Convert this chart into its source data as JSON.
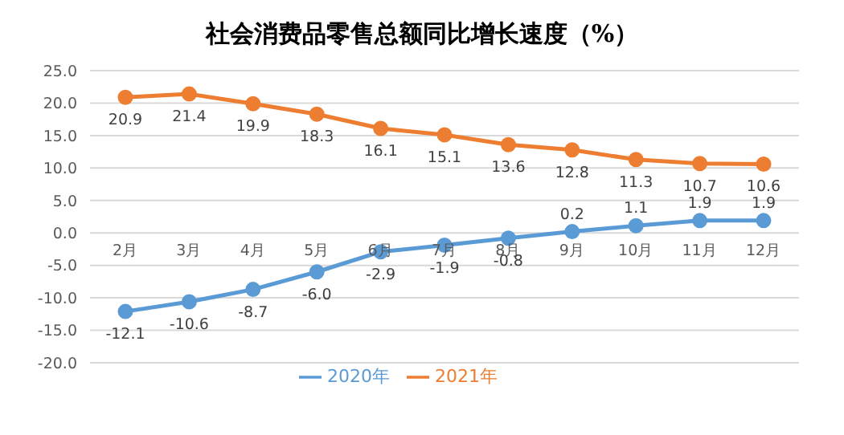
{
  "chart_data": {
    "type": "line",
    "title": "社会消费品零售总额同比增长速度（%）",
    "categories": [
      "2月",
      "3月",
      "4月",
      "5月",
      "6月",
      "7月",
      "8月",
      "9月",
      "10月",
      "11月",
      "12月"
    ],
    "series": [
      {
        "name": "2020年",
        "color": "#5b9bd5",
        "values": [
          -12.1,
          -10.6,
          -8.7,
          -6.0,
          -2.9,
          -1.9,
          -0.8,
          0.2,
          1.1,
          1.9,
          1.9
        ],
        "value_labels": [
          "-12.1",
          "-10.6",
          "-8.7",
          "-6.0",
          "-2.9",
          "-1.9",
          "-0.8",
          "0.2",
          "1.1",
          "1.9",
          "1.9"
        ]
      },
      {
        "name": "2021年",
        "color": "#ed7d31",
        "values": [
          20.9,
          21.4,
          19.9,
          18.3,
          16.1,
          15.1,
          13.6,
          12.8,
          11.3,
          10.7,
          10.6
        ],
        "value_labels": [
          "20.9",
          "21.4",
          "19.9",
          "18.3",
          "16.1",
          "15.1",
          "13.6",
          "12.8",
          "11.3",
          "10.7",
          "10.6"
        ]
      }
    ],
    "ylim": [
      -20,
      25
    ],
    "yticks": [
      {
        "value": -20,
        "label": "-20.0"
      },
      {
        "value": -15,
        "label": "-15.0"
      },
      {
        "value": -10,
        "label": "-10.0"
      },
      {
        "value": -5,
        "label": "-5.0"
      },
      {
        "value": 0,
        "label": "0.0"
      },
      {
        "value": 5,
        "label": "5.0"
      },
      {
        "value": 10,
        "label": "10.0"
      },
      {
        "value": 15,
        "label": "15.0"
      },
      {
        "value": 20,
        "label": "20.0"
      },
      {
        "value": 25,
        "label": "25.0"
      }
    ],
    "grid": "y",
    "legend": "bottom",
    "marker": "circle",
    "line_style": "solid"
  }
}
